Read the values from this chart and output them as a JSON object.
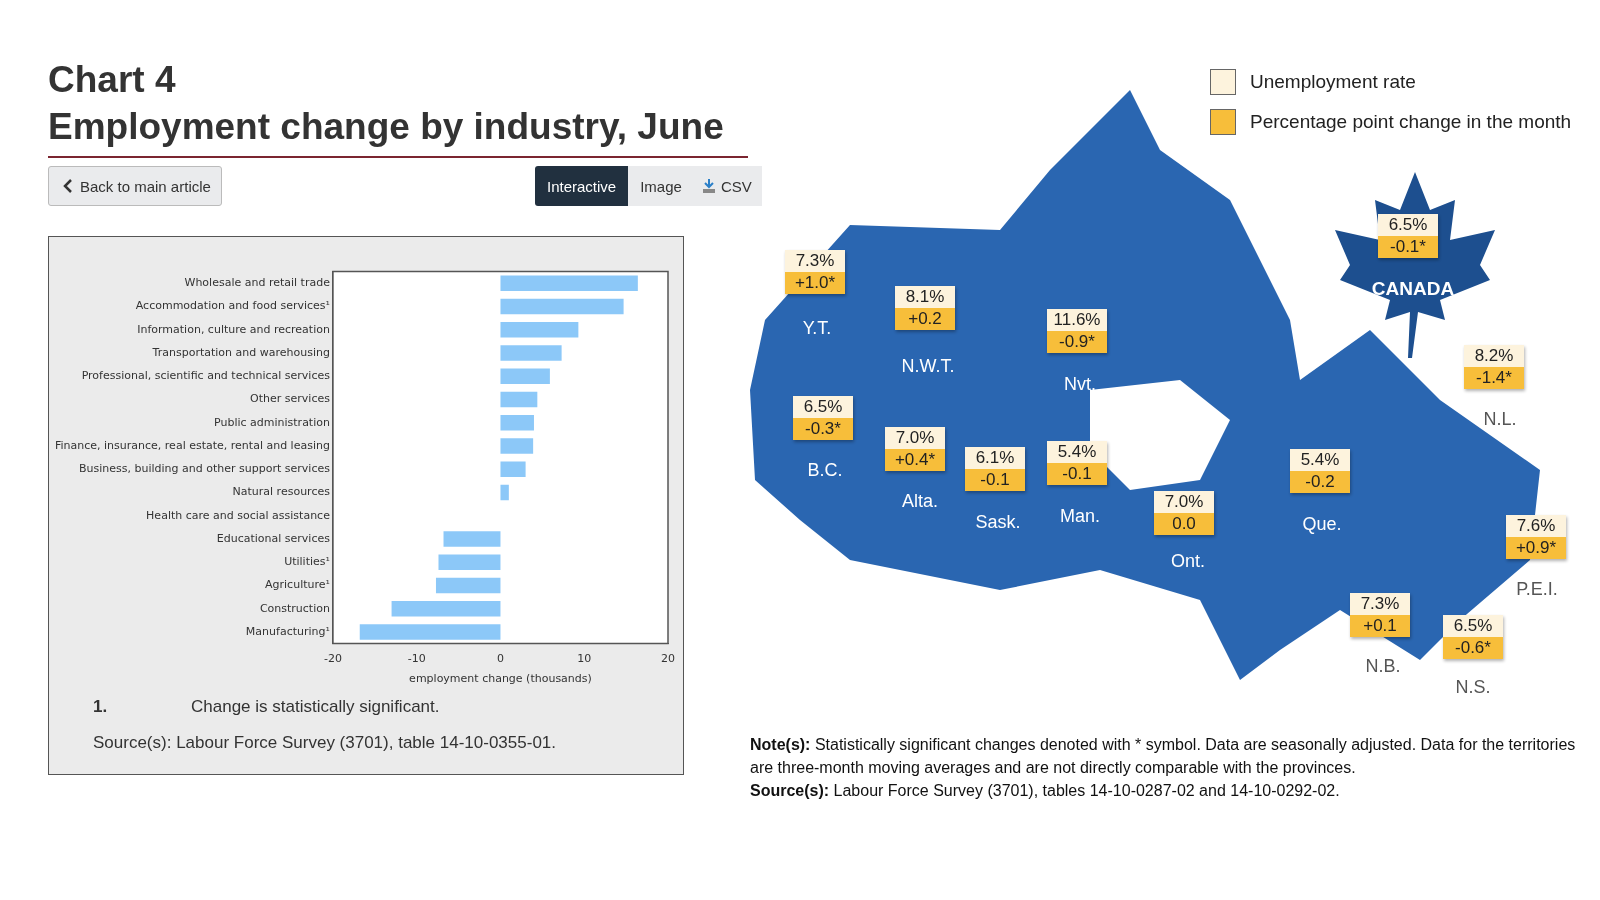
{
  "chart_data": [
    {
      "type": "bar",
      "orientation": "horizontal",
      "title": "Chart 4",
      "subtitle": "Employment change by industry, June",
      "xlabel": "employment change (thousands)",
      "categories": [
        "Wholesale and retail trade",
        "Accommodation and food services¹",
        "Information, culture and recreation",
        "Transportation and warehousing",
        "Professional, scientific and technical services",
        "Other services",
        "Public administration",
        "Finance, insurance, real estate, rental and leasing",
        "Business, building and other support services",
        "Natural resources",
        "Health care and social assistance",
        "Educational services",
        "Utilities¹",
        "Agriculture¹",
        "Construction",
        "Manufacturing¹"
      ],
      "values": [
        16.4,
        14.7,
        9.3,
        7.3,
        5.9,
        4.4,
        4.0,
        3.9,
        3.0,
        1.0,
        0,
        -6.8,
        -7.4,
        -7.7,
        -13.0,
        -16.8
      ],
      "color": "#8cc8f8",
      "xlim": [
        -20,
        20
      ],
      "xticks": [
        -20,
        -10,
        0,
        10,
        20
      ],
      "grid": false,
      "legend": false,
      "annotations": [
        "Back to main article",
        "Interactive",
        "Image",
        "CSV",
        "1.",
        "Change is statistically significant.",
        "Source(s): Labour Force Survey (3701), table 14-10-0355-01."
      ]
    },
    {
      "type": "other",
      "legend": "top right",
      "categories": [
        "CANADA",
        "N.L.",
        "P.E.I.",
        "N.S.",
        "N.B.",
        "Que.",
        "Ont.",
        "Man.",
        "Sask.",
        "Alta.",
        "B.C.",
        "Y.T.",
        "N.W.T.",
        "Nvt."
      ],
      "series": [
        {
          "name": "Unemployment rate",
          "color": "#fdf3dd",
          "values": [
            6.5,
            8.2,
            7.6,
            6.5,
            7.3,
            5.4,
            7.0,
            5.4,
            6.1,
            7.0,
            6.5,
            7.3,
            8.1,
            11.6
          ],
          "value_labels": [
            "6.5%",
            "8.2%",
            "7.6%",
            "6.5%",
            "7.3%",
            "5.4%",
            "7.0%",
            "5.4%",
            "6.1%",
            "7.0%",
            "6.5%",
            "7.3%",
            "8.1%",
            "11.6%"
          ]
        },
        {
          "name": "Percentage point change in the month",
          "color": "#f7be3a",
          "values": [
            -0.1,
            -1.4,
            0.9,
            -0.6,
            0.1,
            -0.2,
            0.0,
            -0.1,
            -0.1,
            0.4,
            -0.3,
            1.0,
            0.2,
            -0.9
          ],
          "value_labels": [
            "-0.1*",
            "-1.4*",
            "+0.9*",
            "-0.6*",
            "+0.1",
            "-0.2",
            "0.0",
            "-0.1",
            "-0.1",
            "+0.4*",
            "-0.3*",
            "+1.0*",
            "+0.2",
            "-0.9*"
          ]
        }
      ],
      "annotations": [
        "Note(s): Statistically significant changes denoted with * symbol. Data are seasonally adjusted. Data for the territories are three-month moving averages and are not directly comparable with the provinces.",
        "Source(s): Labour Force Survey (3701), tables 14-10-0287-02 and 14-10-0292-02."
      ]
    }
  ]
}
